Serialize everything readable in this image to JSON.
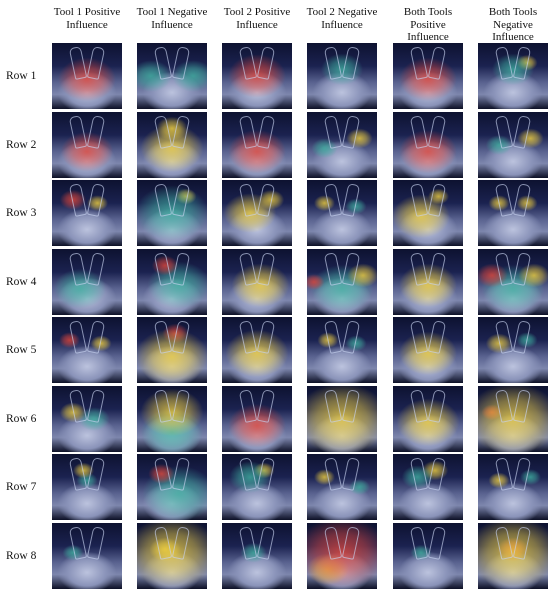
{
  "columns": [
    "Tool 1 Positive Influence",
    "Tool 1 Negative Influence",
    "Tool 2 Positive Influence",
    "Tool 2 Negative Influence",
    "Both Tools Positive Influence",
    "Both Tools Negative Influence"
  ],
  "column_lines": [
    [
      "Tool 1 Positive",
      "Influence"
    ],
    [
      "Tool 1 Negative",
      "Influence"
    ],
    [
      "Tool 2 Positive",
      "Influence"
    ],
    [
      "Tool 2 Negative",
      "Influence"
    ],
    [
      "Both Tools",
      "Positive",
      "Influence"
    ],
    [
      "Both Tools",
      "Negative",
      "Influence"
    ]
  ],
  "rows": [
    "Row 1",
    "Row 2",
    "Row 3",
    "Row 4",
    "Row 5",
    "Row 6",
    "Row 7",
    "Row 8"
  ],
  "colors": {
    "heat_high": "#e0463a",
    "heat_mid": "#f0d040",
    "heat_low": "#3fb0a0",
    "background_dark": "#0d1230"
  }
}
